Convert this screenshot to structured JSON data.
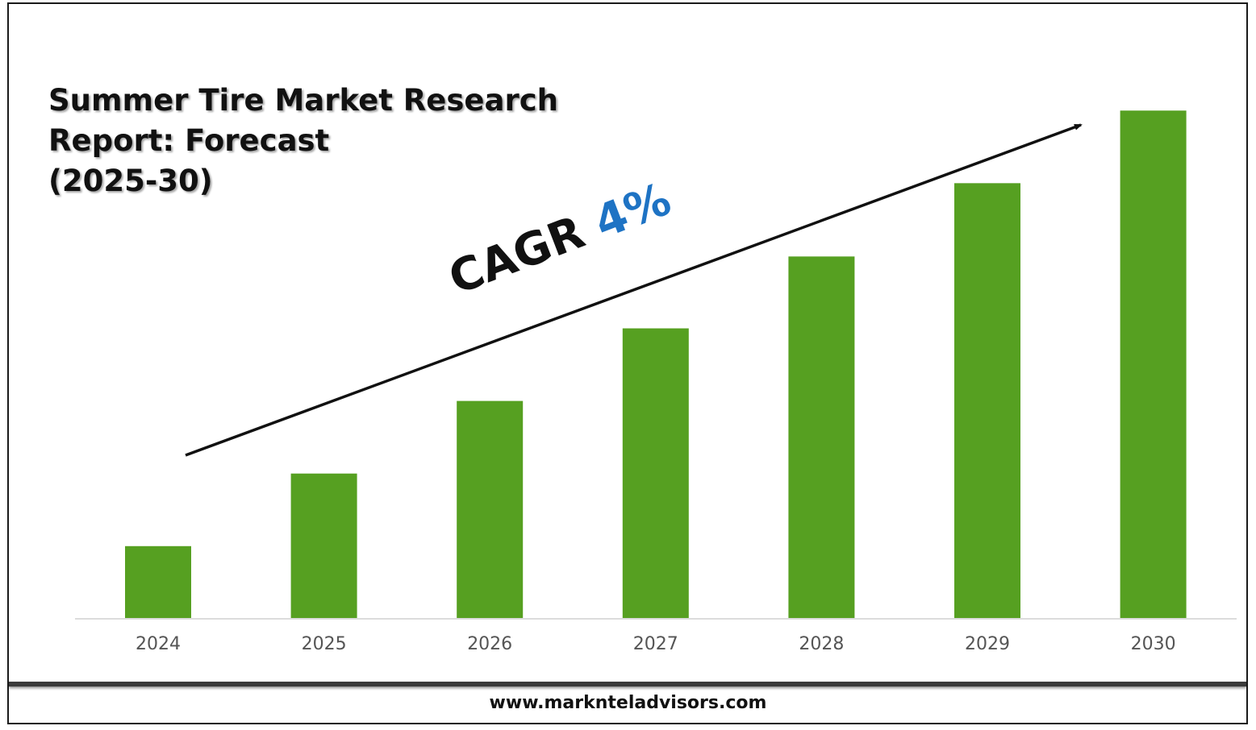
{
  "chart_data": {
    "type": "bar",
    "title": [
      "Summer Tire Market Research",
      "Report: Forecast",
      "(2025-30)"
    ],
    "categories": [
      "2024",
      "2025",
      "2026",
      "2027",
      "2028",
      "2029",
      "2030"
    ],
    "values": [
      1.0,
      2.01,
      3.02,
      4.03,
      5.03,
      6.05,
      7.06
    ],
    "ylim": [
      0,
      7.5
    ],
    "grid": false,
    "bar_color": "#56a021",
    "annotation": {
      "label": "CAGR",
      "value": "4%",
      "value_color": "#1e73c4"
    }
  },
  "footer": {
    "website": "www.marknteladvisors.com"
  }
}
